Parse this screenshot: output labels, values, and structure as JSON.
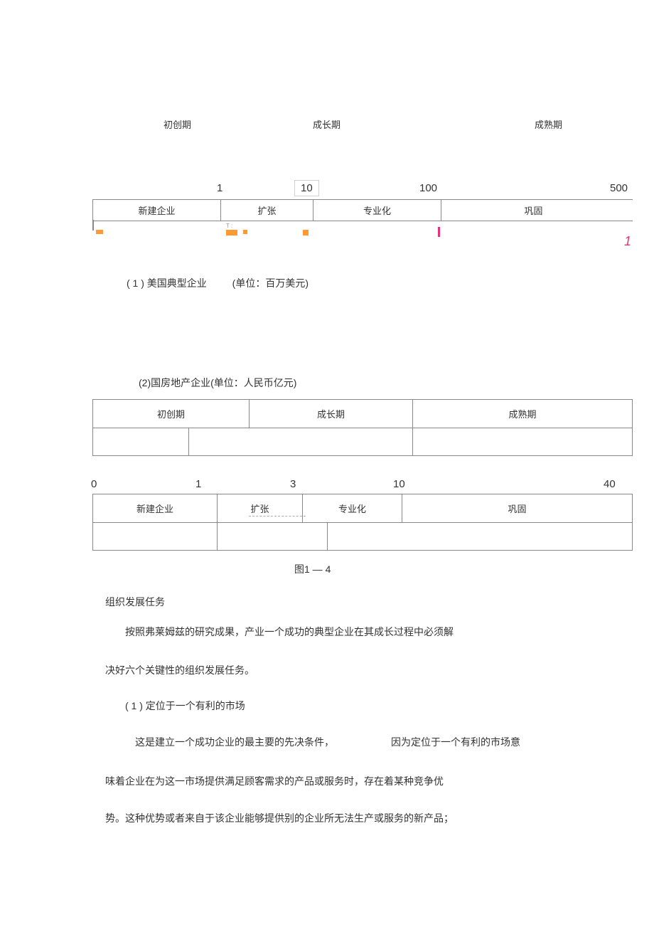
{
  "diagram1": {
    "stages": {
      "s1": "初创期",
      "s2": "成长期",
      "s3": "成熟期"
    },
    "axis_values": {
      "v1": "1",
      "v2": "10",
      "v3": "100",
      "v4": "500"
    },
    "phases": {
      "p1": "新建企业",
      "p2": "扩张",
      "p3": "专业化",
      "p4": "巩固"
    },
    "caption_main": "( 1 ) 美国典型企业",
    "caption_unit": "(单位：百万美元)",
    "marker_color": "#ff9933",
    "accent_color": "#e63377",
    "pink_mark": "1"
  },
  "diagram2": {
    "caption": "(2)国房地产企业(单位：人民币亿元)",
    "stages": {
      "s1": "初创期",
      "s2": "成长期",
      "s3": "成熟期"
    },
    "axis_values": {
      "v0": "0",
      "v1": "1",
      "v3": "3",
      "v10": "10",
      "v40": "40"
    },
    "phases": {
      "p1": "新建企业",
      "p2": "扩张",
      "p3": "专业化",
      "p4": "巩固"
    }
  },
  "figure_label": "图1 — 4",
  "text": {
    "heading": "组织发展任务",
    "para1": "按照弗莱姆兹的研究成果，产业一个成功的典型企业在其成长过程中必须解",
    "para2": "决好六个关键性的组织发展任务。",
    "para3": "( 1 ) 定位于一个有利的市场",
    "para4a": "这是建立一个成功企业的最主要的先决条件，",
    "para4b": "因为定位于一个有利的市场意",
    "para5": "味着企业在为这一市场提供满足顾客需求的产品或服务时，存在着某种竞争优",
    "para6": "势。这种优势或者来自于该企业能够提供别的企业所无法生产或服务的新产品；"
  }
}
